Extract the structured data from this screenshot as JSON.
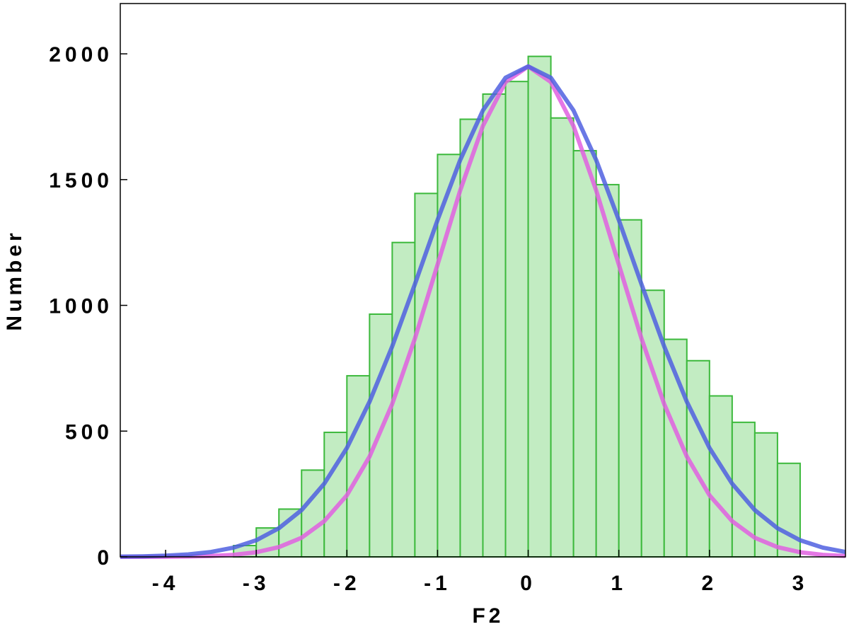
{
  "chart_data": {
    "type": "histogram",
    "xlabel": "F2",
    "ylabel": "Number",
    "xlim": [
      -4.5,
      3.5
    ],
    "ylim": [
      0,
      2200
    ],
    "xticks": [
      -4,
      -3,
      -2,
      -1,
      0,
      1,
      2,
      3
    ],
    "yticks": [
      0,
      500,
      1000,
      1500,
      2000
    ],
    "bins": [
      -3.25,
      -3,
      -2.75,
      -2.5,
      -2.25,
      -2,
      -1.75,
      -1.5,
      -1.25,
      -1,
      -0.75,
      -0.5,
      -0.25,
      0,
      0.25,
      0.5,
      0.75,
      1,
      1.25,
      1.5,
      1.75,
      2,
      2.25,
      2.5,
      2.75,
      3
    ],
    "values": [
      45,
      115,
      190,
      345,
      495,
      720,
      965,
      1250,
      1445,
      1600,
      1740,
      1840,
      1890,
      1990,
      1745,
      1615,
      1480,
      1340,
      1060,
      865,
      780,
      640,
      535,
      493,
      372
    ],
    "color": "#c2ecc2",
    "edgecolor": "#3cb93c",
    "curves": [
      {
        "color": "#e060e0",
        "x": [
          -4.5,
          -4.25,
          -4,
          -3.75,
          -3.5,
          -3.25,
          -3,
          -2.75,
          -2.5,
          -2.25,
          -2,
          -1.75,
          -1.5,
          -1.25,
          -1,
          -0.75,
          -0.5,
          -0.25,
          0,
          0.25,
          0.5,
          0.75,
          1,
          1.25,
          1.5,
          1.75,
          2,
          2.25,
          2.5,
          2.75,
          3,
          3.25,
          3.5
        ],
        "values": [
          0.05,
          0.17,
          0.49,
          1.3,
          3.4,
          8.2,
          18.4,
          38.8,
          76,
          142,
          245,
          399,
          608,
          868,
          1162,
          1457,
          1713,
          1888,
          1950,
          1888,
          1713,
          1457,
          1162,
          868,
          608,
          399,
          245,
          142,
          76,
          38.8,
          18.4,
          8.2,
          3.4
        ]
      },
      {
        "color": "#5060e0",
        "x": [
          -4.5,
          -4.25,
          -4,
          -3.75,
          -3.5,
          -3.25,
          -3,
          -2.75,
          -2.5,
          -2.25,
          -2,
          -1.75,
          -1.5,
          -1.25,
          -1,
          -0.75,
          -0.5,
          -0.25,
          0,
          0.25,
          0.5,
          0.75,
          1,
          1.25,
          1.5,
          1.75,
          2,
          2.25,
          2.5,
          2.75,
          3,
          3.25,
          3.5
        ],
        "values": [
          1,
          2.2,
          4.8,
          9.9,
          19.5,
          36.8,
          66,
          114,
          186,
          291,
          433,
          617,
          837,
          1084,
          1339,
          1578,
          1775,
          1905,
          1950,
          1905,
          1775,
          1578,
          1339,
          1084,
          837,
          617,
          433,
          291,
          186,
          114,
          66,
          36.8,
          19.5
        ]
      }
    ]
  }
}
